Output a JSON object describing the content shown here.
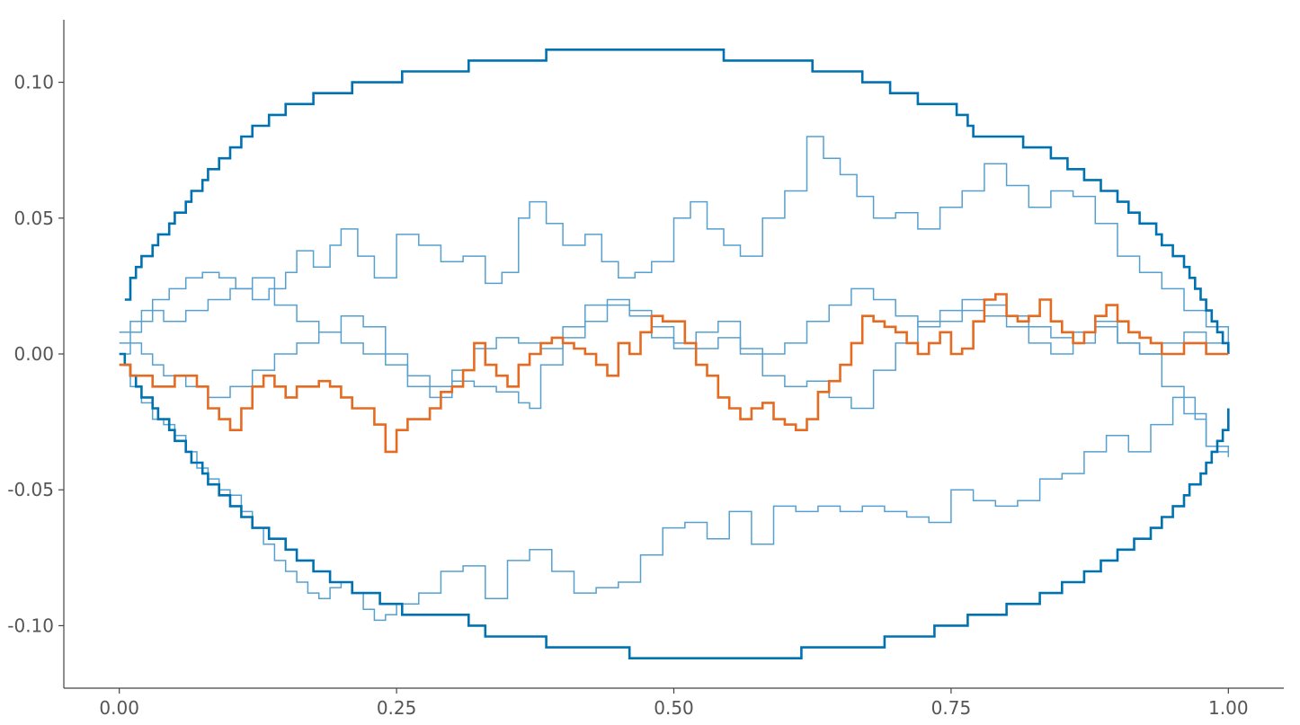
{
  "chart_data": {
    "type": "line",
    "title": "",
    "xlabel": "",
    "ylabel": "",
    "xlim": [
      -0.05,
      1.05
    ],
    "ylim": [
      -0.123,
      0.123
    ],
    "grid": false,
    "legend": "none",
    "x_ticks": [
      {
        "value": 0.0,
        "label": "0.00"
      },
      {
        "value": 0.25,
        "label": "0.25"
      },
      {
        "value": 0.5,
        "label": "0.50"
      },
      {
        "value": 0.75,
        "label": "0.75"
      },
      {
        "value": 1.0,
        "label": "1.00"
      }
    ],
    "y_ticks": [
      {
        "value": 0.1,
        "label": "0.10"
      },
      {
        "value": 0.05,
        "label": "0.05"
      },
      {
        "value": 0.0,
        "label": "0.00"
      },
      {
        "value": -0.05,
        "label": "-0.05"
      },
      {
        "value": -0.1,
        "label": "-0.10"
      }
    ],
    "colors": {
      "bound": "#0072B2",
      "path_light": "#56A0CF",
      "path_highlight": "#E66B22",
      "axis": "#444444"
    },
    "series": [
      {
        "role": "upper-bound",
        "step": true,
        "x": [
          0.005,
          0.01,
          0.015,
          0.02,
          0.03,
          0.035,
          0.045,
          0.05,
          0.06,
          0.065,
          0.075,
          0.08,
          0.09,
          0.1,
          0.11,
          0.12,
          0.135,
          0.15,
          0.16,
          0.175,
          0.19,
          0.21,
          0.235,
          0.255,
          0.27,
          0.315,
          0.33,
          0.385,
          0.45,
          0.5,
          0.545,
          0.61,
          0.625,
          0.67,
          0.695,
          0.72,
          0.735,
          0.755,
          0.765,
          0.77,
          0.8,
          0.815,
          0.84,
          0.855,
          0.87,
          0.885,
          0.9,
          0.91,
          0.92,
          0.935,
          0.94,
          0.95,
          0.96,
          0.965,
          0.97,
          0.975,
          0.98,
          0.985,
          0.99,
          0.995,
          1.0
        ],
        "y": [
          0.02,
          0.028,
          0.032,
          0.036,
          0.04,
          0.044,
          0.048,
          0.052,
          0.056,
          0.06,
          0.064,
          0.068,
          0.072,
          0.076,
          0.08,
          0.084,
          0.088,
          0.092,
          0.092,
          0.096,
          0.096,
          0.1,
          0.1,
          0.104,
          0.104,
          0.108,
          0.108,
          0.112,
          0.112,
          0.112,
          0.108,
          0.108,
          0.104,
          0.1,
          0.096,
          0.092,
          0.092,
          0.088,
          0.084,
          0.08,
          0.08,
          0.076,
          0.072,
          0.068,
          0.064,
          0.06,
          0.056,
          0.052,
          0.048,
          0.044,
          0.04,
          0.036,
          0.032,
          0.028,
          0.024,
          0.02,
          0.016,
          0.012,
          0.008,
          0.004,
          0.0
        ]
      },
      {
        "role": "lower-bound",
        "step": true,
        "x": [
          0.0,
          0.005,
          0.01,
          0.015,
          0.02,
          0.03,
          0.035,
          0.045,
          0.05,
          0.06,
          0.065,
          0.075,
          0.08,
          0.09,
          0.1,
          0.11,
          0.12,
          0.135,
          0.15,
          0.16,
          0.175,
          0.19,
          0.21,
          0.235,
          0.255,
          0.27,
          0.315,
          0.33,
          0.385,
          0.46,
          0.5,
          0.615,
          0.69,
          0.735,
          0.765,
          0.8,
          0.83,
          0.85,
          0.87,
          0.885,
          0.9,
          0.915,
          0.93,
          0.94,
          0.95,
          0.96,
          0.965,
          0.975,
          0.98,
          0.985,
          0.99,
          0.995,
          1.0
        ],
        "y": [
          0.0,
          -0.004,
          -0.008,
          -0.012,
          -0.016,
          -0.02,
          -0.024,
          -0.028,
          -0.032,
          -0.036,
          -0.04,
          -0.044,
          -0.048,
          -0.052,
          -0.056,
          -0.06,
          -0.064,
          -0.068,
          -0.072,
          -0.076,
          -0.08,
          -0.084,
          -0.088,
          -0.092,
          -0.096,
          -0.096,
          -0.1,
          -0.104,
          -0.108,
          -0.112,
          -0.112,
          -0.108,
          -0.104,
          -0.1,
          -0.096,
          -0.092,
          -0.088,
          -0.084,
          -0.08,
          -0.076,
          -0.072,
          -0.068,
          -0.064,
          -0.06,
          -0.056,
          -0.052,
          -0.048,
          -0.044,
          -0.04,
          -0.036,
          -0.032,
          -0.028,
          -0.02
        ]
      },
      {
        "role": "sample-path",
        "step": true,
        "x": [
          0.0,
          0.01,
          0.02,
          0.03,
          0.045,
          0.06,
          0.075,
          0.09,
          0.105,
          0.12,
          0.135,
          0.15,
          0.16,
          0.175,
          0.19,
          0.2,
          0.215,
          0.23,
          0.25,
          0.27,
          0.29,
          0.31,
          0.33,
          0.345,
          0.36,
          0.37,
          0.385,
          0.4,
          0.42,
          0.435,
          0.45,
          0.465,
          0.48,
          0.5,
          0.515,
          0.53,
          0.545,
          0.56,
          0.58,
          0.6,
          0.62,
          0.635,
          0.65,
          0.665,
          0.68,
          0.7,
          0.72,
          0.74,
          0.76,
          0.78,
          0.8,
          0.82,
          0.84,
          0.86,
          0.88,
          0.9,
          0.92,
          0.94,
          0.96,
          0.98,
          1.0
        ],
        "y": [
          0.008,
          0.012,
          0.016,
          0.02,
          0.024,
          0.028,
          0.03,
          0.028,
          0.024,
          0.02,
          0.024,
          0.03,
          0.038,
          0.032,
          0.04,
          0.046,
          0.036,
          0.028,
          0.044,
          0.04,
          0.034,
          0.036,
          0.026,
          0.03,
          0.05,
          0.056,
          0.048,
          0.04,
          0.044,
          0.034,
          0.028,
          0.03,
          0.034,
          0.05,
          0.056,
          0.046,
          0.04,
          0.036,
          0.05,
          0.06,
          0.08,
          0.072,
          0.066,
          0.058,
          0.05,
          0.052,
          0.046,
          0.054,
          0.06,
          0.07,
          0.062,
          0.054,
          0.06,
          0.058,
          0.048,
          0.036,
          0.03,
          0.024,
          0.016,
          0.01,
          0.0
        ]
      },
      {
        "role": "sample-path",
        "step": true,
        "x": [
          0.0,
          0.01,
          0.02,
          0.03,
          0.04,
          0.06,
          0.08,
          0.1,
          0.12,
          0.14,
          0.16,
          0.18,
          0.2,
          0.22,
          0.24,
          0.26,
          0.28,
          0.3,
          0.32,
          0.34,
          0.36,
          0.38,
          0.4,
          0.42,
          0.44,
          0.46,
          0.48,
          0.5,
          0.52,
          0.54,
          0.56,
          0.58,
          0.6,
          0.62,
          0.64,
          0.66,
          0.68,
          0.7,
          0.72,
          0.74,
          0.76,
          0.78,
          0.8,
          0.82,
          0.84,
          0.86,
          0.88,
          0.9,
          0.92,
          0.94,
          0.96,
          0.98,
          1.0
        ],
        "y": [
          0.004,
          0.008,
          0.012,
          0.016,
          0.012,
          0.016,
          0.02,
          0.024,
          0.028,
          0.018,
          0.012,
          0.008,
          0.004,
          0.0,
          -0.004,
          -0.012,
          -0.016,
          -0.006,
          0.002,
          0.006,
          0.004,
          0.002,
          0.006,
          0.012,
          0.018,
          0.014,
          0.006,
          0.002,
          0.008,
          0.012,
          0.0,
          -0.008,
          -0.012,
          -0.01,
          -0.016,
          -0.02,
          -0.006,
          0.004,
          0.012,
          0.016,
          0.02,
          0.014,
          0.01,
          0.004,
          0.0,
          0.008,
          0.012,
          0.004,
          0.0,
          0.004,
          0.008,
          0.004,
          0.0
        ]
      },
      {
        "role": "sample-path",
        "step": true,
        "x": [
          0.0,
          0.01,
          0.02,
          0.03,
          0.04,
          0.06,
          0.08,
          0.1,
          0.12,
          0.14,
          0.16,
          0.18,
          0.2,
          0.22,
          0.24,
          0.26,
          0.28,
          0.3,
          0.32,
          0.34,
          0.36,
          0.37,
          0.38,
          0.4,
          0.42,
          0.44,
          0.46,
          0.48,
          0.5,
          0.52,
          0.54,
          0.56,
          0.58,
          0.6,
          0.62,
          0.64,
          0.66,
          0.68,
          0.7,
          0.72,
          0.74,
          0.76,
          0.78,
          0.8,
          0.82,
          0.84,
          0.86,
          0.88,
          0.9,
          0.92,
          0.94,
          0.96,
          0.98,
          0.99,
          1.0
        ],
        "y": [
          0.0,
          0.004,
          0.0,
          -0.004,
          -0.008,
          -0.012,
          -0.016,
          -0.012,
          -0.006,
          0.0,
          0.004,
          0.008,
          0.014,
          0.01,
          0.0,
          -0.008,
          -0.012,
          -0.01,
          -0.012,
          -0.014,
          -0.018,
          -0.02,
          -0.004,
          0.01,
          0.018,
          0.02,
          0.016,
          0.01,
          0.004,
          0.002,
          0.006,
          0.002,
          0.0,
          0.004,
          0.012,
          0.018,
          0.024,
          0.02,
          0.014,
          0.01,
          0.012,
          0.016,
          0.018,
          0.014,
          0.01,
          0.006,
          0.004,
          0.01,
          0.004,
          0.0,
          -0.012,
          -0.022,
          -0.034,
          -0.036,
          -0.038
        ]
      },
      {
        "role": "sample-path",
        "step": true,
        "x": [
          0.0,
          0.01,
          0.02,
          0.03,
          0.04,
          0.05,
          0.06,
          0.07,
          0.08,
          0.09,
          0.1,
          0.11,
          0.12,
          0.13,
          0.14,
          0.15,
          0.16,
          0.17,
          0.18,
          0.19,
          0.2,
          0.21,
          0.22,
          0.23,
          0.24,
          0.25,
          0.27,
          0.29,
          0.31,
          0.33,
          0.35,
          0.37,
          0.39,
          0.41,
          0.43,
          0.45,
          0.47,
          0.49,
          0.51,
          0.53,
          0.55,
          0.57,
          0.59,
          0.61,
          0.63,
          0.65,
          0.67,
          0.69,
          0.71,
          0.73,
          0.75,
          0.77,
          0.79,
          0.81,
          0.83,
          0.85,
          0.87,
          0.89,
          0.91,
          0.93,
          0.95,
          0.97,
          0.98,
          1.0
        ],
        "y": [
          -0.004,
          -0.012,
          -0.018,
          -0.024,
          -0.026,
          -0.03,
          -0.036,
          -0.042,
          -0.046,
          -0.05,
          -0.052,
          -0.058,
          -0.064,
          -0.07,
          -0.076,
          -0.08,
          -0.084,
          -0.088,
          -0.09,
          -0.086,
          -0.084,
          -0.088,
          -0.094,
          -0.098,
          -0.096,
          -0.092,
          -0.088,
          -0.08,
          -0.078,
          -0.09,
          -0.076,
          -0.072,
          -0.08,
          -0.088,
          -0.086,
          -0.084,
          -0.074,
          -0.064,
          -0.062,
          -0.068,
          -0.058,
          -0.07,
          -0.056,
          -0.058,
          -0.056,
          -0.058,
          -0.056,
          -0.058,
          -0.06,
          -0.062,
          -0.05,
          -0.054,
          -0.056,
          -0.054,
          -0.046,
          -0.044,
          -0.036,
          -0.03,
          -0.036,
          -0.026,
          -0.016,
          -0.024,
          -0.034,
          -0.036
        ]
      },
      {
        "role": "highlight-path",
        "step": true,
        "x": [
          0.0,
          0.01,
          0.02,
          0.03,
          0.04,
          0.05,
          0.06,
          0.07,
          0.08,
          0.09,
          0.1,
          0.11,
          0.12,
          0.13,
          0.14,
          0.15,
          0.16,
          0.17,
          0.18,
          0.19,
          0.2,
          0.21,
          0.22,
          0.23,
          0.24,
          0.25,
          0.26,
          0.27,
          0.28,
          0.29,
          0.3,
          0.31,
          0.32,
          0.33,
          0.34,
          0.35,
          0.36,
          0.37,
          0.38,
          0.39,
          0.4,
          0.41,
          0.42,
          0.43,
          0.44,
          0.45,
          0.46,
          0.47,
          0.48,
          0.49,
          0.5,
          0.51,
          0.52,
          0.53,
          0.54,
          0.55,
          0.56,
          0.57,
          0.58,
          0.59,
          0.6,
          0.61,
          0.62,
          0.63,
          0.64,
          0.65,
          0.66,
          0.67,
          0.68,
          0.69,
          0.7,
          0.71,
          0.72,
          0.73,
          0.74,
          0.75,
          0.76,
          0.77,
          0.78,
          0.79,
          0.8,
          0.81,
          0.82,
          0.83,
          0.84,
          0.85,
          0.86,
          0.87,
          0.88,
          0.89,
          0.9,
          0.91,
          0.92,
          0.93,
          0.94,
          0.95,
          0.96,
          0.97,
          0.98,
          0.99,
          1.0
        ],
        "y": [
          -0.004,
          -0.008,
          -0.008,
          -0.012,
          -0.012,
          -0.008,
          -0.008,
          -0.012,
          -0.02,
          -0.024,
          -0.028,
          -0.02,
          -0.012,
          -0.008,
          -0.012,
          -0.016,
          -0.012,
          -0.012,
          -0.01,
          -0.012,
          -0.016,
          -0.02,
          -0.02,
          -0.026,
          -0.036,
          -0.028,
          -0.024,
          -0.024,
          -0.02,
          -0.014,
          -0.012,
          -0.006,
          0.004,
          -0.004,
          -0.008,
          -0.012,
          -0.004,
          0.0,
          0.004,
          0.006,
          0.004,
          0.002,
          0.0,
          -0.004,
          -0.008,
          0.004,
          0.0,
          0.008,
          0.014,
          0.012,
          0.012,
          0.004,
          -0.004,
          -0.008,
          -0.016,
          -0.02,
          -0.024,
          -0.02,
          -0.018,
          -0.024,
          -0.026,
          -0.028,
          -0.024,
          -0.014,
          -0.01,
          -0.004,
          0.004,
          0.014,
          0.012,
          0.01,
          0.008,
          0.004,
          0.0,
          0.004,
          0.008,
          0.0,
          0.002,
          0.012,
          0.02,
          0.022,
          0.014,
          0.012,
          0.014,
          0.02,
          0.012,
          0.008,
          0.004,
          0.008,
          0.014,
          0.018,
          0.012,
          0.008,
          0.006,
          0.004,
          0.0,
          0.0,
          0.004,
          0.004,
          0.0,
          0.0,
          0.0
        ]
      }
    ]
  }
}
